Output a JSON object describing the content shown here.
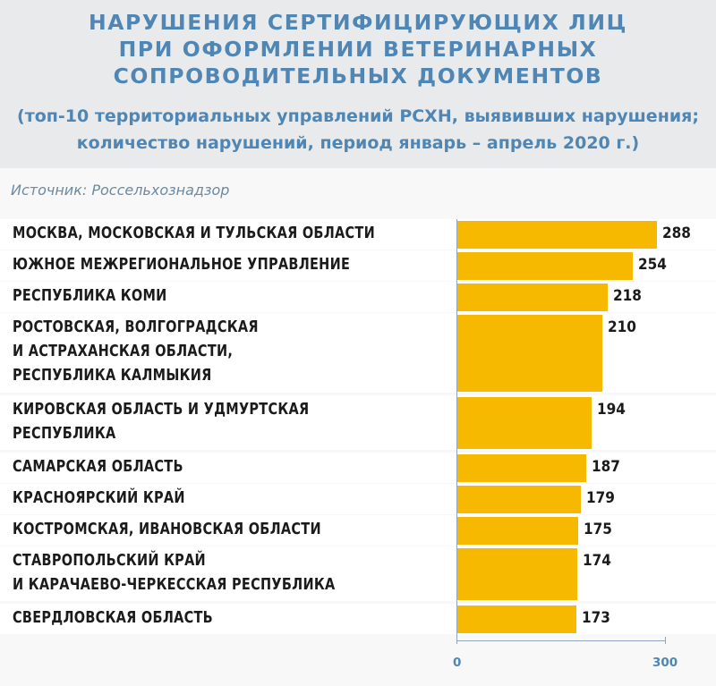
{
  "header": {
    "title_lines": [
      "НАРУШЕНИЯ СЕРТИФИЦИРУЮЩИХ ЛИЦ",
      "ПРИ ОФОРМЛЕНИИ ВЕТЕРИНАРНЫХ",
      "СОПРОВОДИТЕЛЬНЫХ ДОКУМЕНТОВ"
    ],
    "subtitle_lines": [
      "(топ-10 территориальных управлений РСХН, выявивших нарушения;",
      "количество нарушений, период январь – апрель 2020 г.)"
    ],
    "source": "Источник: Россельхознадзор"
  },
  "colors": {
    "title": "#4f86b4",
    "bar": "#f7b800",
    "header_bg": "#e9eaeb",
    "row_bg": "#ffffff",
    "panel_bg": "#f8f8f8"
  },
  "chart_data": {
    "type": "bar",
    "orientation": "horizontal",
    "title": "НАРУШЕНИЯ СЕРТИФИЦИРУЮЩИХ ЛИЦ ПРИ ОФОРМЛЕНИИ ВЕТЕРИНАРНЫХ СОПРОВОДИТЕЛЬНЫХ ДОКУМЕНТОВ",
    "subtitle": "(топ-10 территориальных управлений РСХН, выявивших нарушения; количество нарушений, период январь – апрель 2020 г.)",
    "categories": [
      "МОСКВА, МОСКОВСКАЯ И ТУЛЬСКАЯ ОБЛАСТИ",
      "ЮЖНОЕ МЕЖРЕГИОНАЛЬНОЕ УПРАВЛЕНИЕ",
      "РЕСПУБЛИКА КОМИ",
      "РОСТОВСКАЯ, ВОЛГОГРАДСКАЯ\nИ АСТРАХАНСКАЯ ОБЛАСТИ,\nРЕСПУБЛИКА КАЛМЫКИЯ",
      "КИРОВСКАЯ ОБЛАСТЬ И УДМУРТСКАЯ\nРЕСПУБЛИКА",
      "САМАРСКАЯ ОБЛАСТЬ",
      "КРАСНОЯРСКИЙ КРАЙ",
      "КОСТРОМСКАЯ, ИВАНОВСКАЯ ОБЛАСТИ",
      "СТАВРОПОЛЬСКИЙ КРАЙ\nИ КАРАЧАЕВО-ЧЕРКЕССКАЯ РЕСПУБЛИКА",
      "СВЕРДЛОВСКАЯ ОБЛАСТЬ"
    ],
    "values": [
      288,
      254,
      218,
      210,
      194,
      187,
      179,
      175,
      174,
      173
    ],
    "xlim": [
      0,
      300
    ],
    "xticks": [
      "0",
      "300"
    ],
    "grid": false,
    "legend": "none"
  }
}
